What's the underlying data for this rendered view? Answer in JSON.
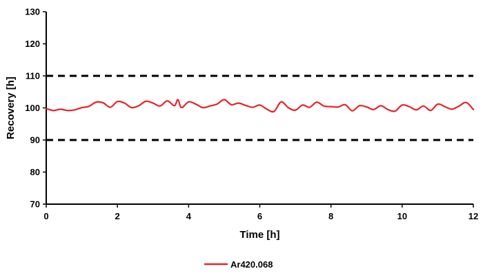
{
  "chart_data": {
    "type": "line",
    "xlabel": "Time [h]",
    "ylabel": "Recovery [h]",
    "xlim": [
      0,
      12
    ],
    "ylim": [
      70,
      130
    ],
    "xticks": [
      0,
      2,
      4,
      6,
      8,
      10,
      12
    ],
    "yticks": [
      70,
      80,
      90,
      100,
      110,
      120,
      130
    ],
    "grid": false,
    "legend_position": "bottom",
    "reference_lines": [
      {
        "y": 110,
        "style": "dashed",
        "color": "#000000"
      },
      {
        "y": 90,
        "style": "dashed",
        "color": "#000000"
      }
    ],
    "series": [
      {
        "name": "Ar420.068",
        "color": "#e8212b",
        "x": [
          0,
          0.2,
          0.4,
          0.6,
          0.8,
          1.0,
          1.2,
          1.4,
          1.6,
          1.8,
          2.0,
          2.2,
          2.4,
          2.6,
          2.8,
          3.0,
          3.2,
          3.4,
          3.6,
          3.7,
          3.8,
          4.0,
          4.2,
          4.4,
          4.6,
          4.8,
          5.0,
          5.2,
          5.4,
          5.6,
          5.8,
          6.0,
          6.2,
          6.4,
          6.6,
          6.8,
          7.0,
          7.2,
          7.4,
          7.6,
          7.8,
          8.0,
          8.2,
          8.4,
          8.6,
          8.8,
          9.0,
          9.2,
          9.4,
          9.6,
          9.8,
          10.0,
          10.2,
          10.4,
          10.6,
          10.8,
          11.0,
          11.2,
          11.4,
          11.6,
          11.8,
          12.0
        ],
        "y": [
          99.8,
          99.2,
          99.6,
          99.2,
          99.4,
          100.1,
          100.5,
          101.8,
          101.6,
          100.2,
          102.0,
          101.5,
          100.1,
          100.7,
          102.1,
          101.5,
          100.6,
          102.2,
          100.7,
          102.6,
          100.1,
          101.9,
          101.2,
          100.1,
          100.6,
          101.2,
          102.6,
          101.0,
          101.5,
          100.8,
          100.2,
          100.9,
          99.6,
          98.9,
          101.9,
          100.1,
          99.3,
          100.9,
          100.2,
          101.8,
          100.6,
          100.4,
          100.3,
          101.0,
          99.1,
          100.7,
          100.3,
          99.5,
          100.7,
          99.5,
          99.0,
          100.9,
          100.4,
          99.4,
          100.6,
          99.2,
          101.2,
          100.4,
          99.6,
          100.6,
          101.7,
          99.5
        ]
      }
    ]
  }
}
